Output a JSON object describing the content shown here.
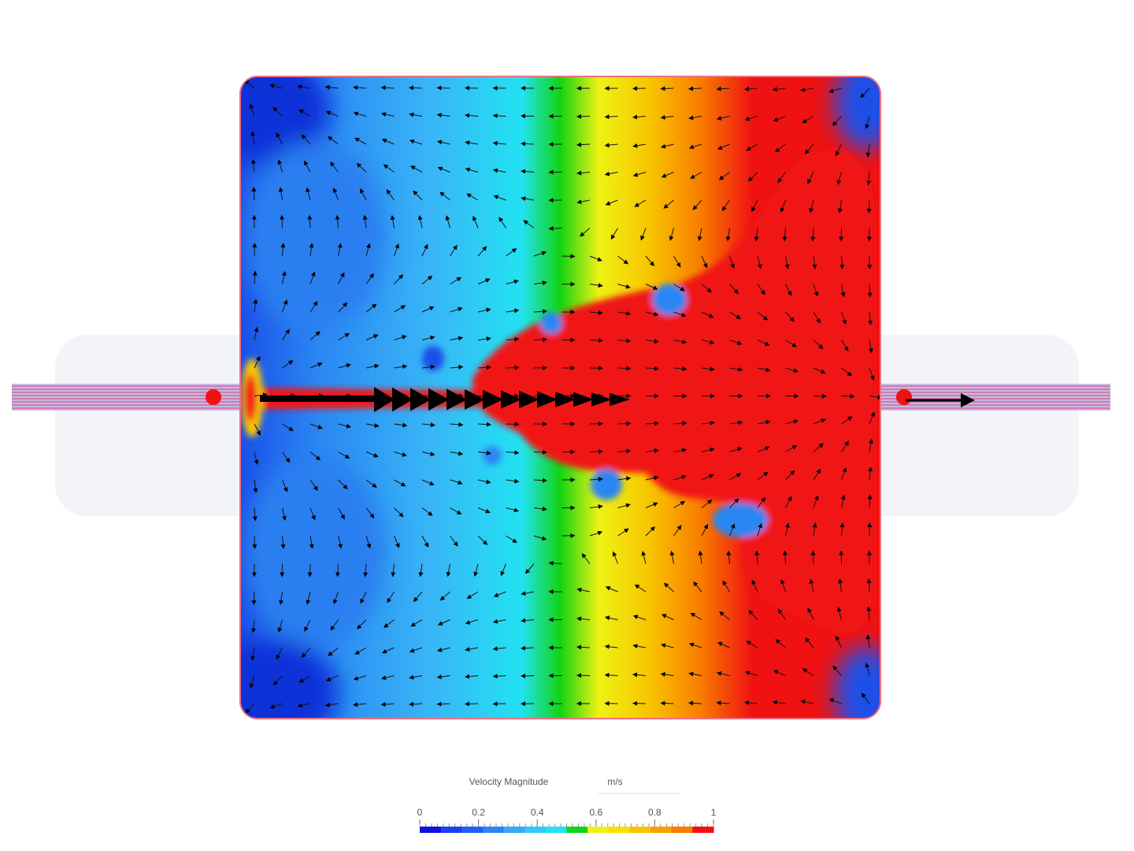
{
  "legend": {
    "title": "Velocity Magnitude",
    "unit": "m/s",
    "ticks": [
      "0",
      "0.2",
      "0.4",
      "0.6",
      "0.8",
      "1"
    ]
  }
}
